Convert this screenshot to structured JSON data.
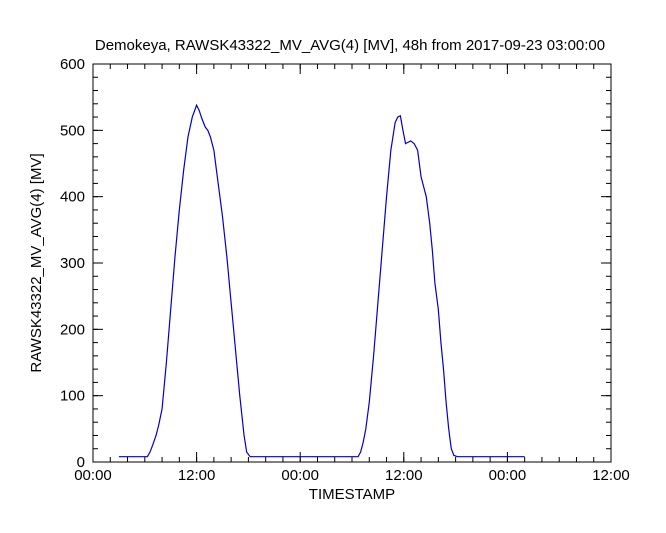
{
  "chart_data": {
    "type": "line",
    "title": "Demokeya, RAWSK43322_MV_AVG(4) [MV], 48h from  2017-09-23 03:00:00",
    "xlabel": "TIMESTAMP",
    "ylabel": "RAWSK43322_MV_AVG(4) [MV]",
    "ylim": [
      0,
      600
    ],
    "y_ticks": [
      "0",
      "100",
      "200",
      "300",
      "400",
      "500",
      "600"
    ],
    "y_tick_values": [
      0,
      100,
      200,
      300,
      400,
      500,
      600
    ],
    "xlim_hours": [
      0,
      60
    ],
    "x_ticks": [
      "00:00",
      "12:00",
      "00:00",
      "12:00"
    ],
    "x_tick_hours": [
      0,
      12,
      24,
      36,
      48,
      60
    ],
    "x_tick_labels_all": [
      "00:00",
      "12:00",
      "00:00",
      "12:00",
      "00:00",
      "12:00"
    ],
    "grid": false,
    "line_color": "#0000cc",
    "series": [
      {
        "x_hours": [
          3,
          6.3,
          6.6,
          6.9,
          7.3,
          7.6,
          8,
          8.5,
          9,
          9.5,
          10,
          10.5,
          11,
          11.5,
          12,
          12.3,
          12.6,
          13,
          13.3,
          13.6,
          14,
          14.5,
          15,
          15.5,
          16,
          16.5,
          17,
          17.5,
          17.8,
          18.2,
          18.6,
          19,
          19.5,
          20,
          25,
          30,
          30.7,
          31,
          31.3,
          31.6,
          32,
          32.5,
          33,
          33.5,
          34,
          34.5,
          35,
          35.3,
          35.6,
          35.9,
          36.2,
          36.5,
          36.8,
          37.2,
          37.6,
          38,
          38.3,
          38.6,
          39,
          39.3,
          39.6,
          40,
          40.3,
          40.6,
          40.9,
          41.2,
          41.5,
          41.8,
          42.2,
          42.6,
          43,
          43.5,
          44,
          48,
          50
        ],
        "y": [
          8,
          8,
          15,
          25,
          40,
          55,
          80,
          150,
          230,
          310,
          380,
          440,
          490,
          520,
          538,
          530,
          518,
          505,
          500,
          490,
          470,
          420,
          370,
          310,
          240,
          170,
          100,
          40,
          15,
          8,
          8,
          8,
          8,
          8,
          8,
          8,
          8,
          15,
          30,
          50,
          90,
          160,
          240,
          320,
          400,
          470,
          512,
          520,
          522,
          500,
          480,
          482,
          484,
          480,
          470,
          430,
          415,
          400,
          360,
          320,
          270,
          230,
          180,
          140,
          90,
          50,
          20,
          10,
          8,
          8,
          8,
          8,
          8,
          8,
          8
        ]
      }
    ]
  }
}
